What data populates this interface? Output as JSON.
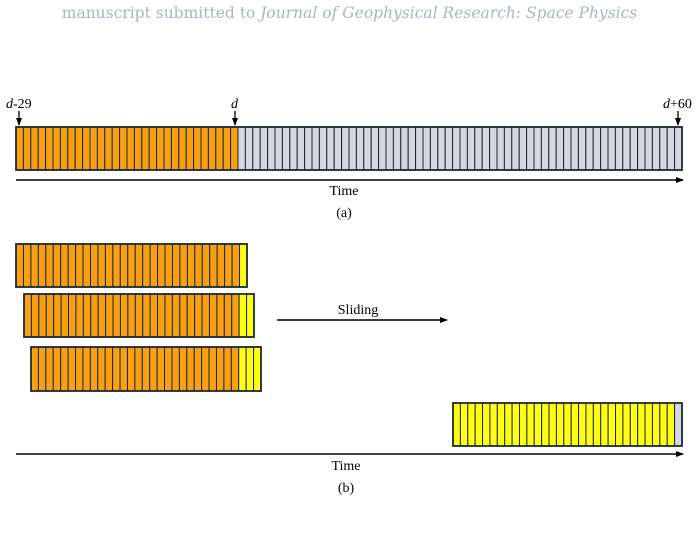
{
  "header": {
    "prefix": "manuscript submitted to ",
    "journal": "Journal of Geophysical Research: Space Physics"
  },
  "panel_a": {
    "marker_left": {
      "italic": "d",
      "suffix": "-29"
    },
    "marker_mid": {
      "italic": "d",
      "suffix": ""
    },
    "marker_right": {
      "italic": "d",
      "suffix": "+60"
    },
    "orange_cells": 30,
    "gray_cells": 60,
    "time_label": "Time",
    "caption": "(a)"
  },
  "panel_b": {
    "sliding_label": "Sliding",
    "time_label": "Time",
    "caption": "(b)",
    "windows": [
      {
        "orange_cells": 30,
        "yellow_cells": 1,
        "gray_cells": 0
      },
      {
        "orange_cells": 29,
        "yellow_cells": 2,
        "gray_cells": 0
      },
      {
        "orange_cells": 28,
        "yellow_cells": 3,
        "gray_cells": 0
      },
      {
        "orange_cells": 0,
        "yellow_cells": 30,
        "gray_cells": 1
      }
    ]
  },
  "colors": {
    "orange": "#f9a012",
    "gray": "#d4d8dc",
    "yellow": "#ffff14",
    "border": "#1a2836",
    "header": "#a8b4c8"
  }
}
